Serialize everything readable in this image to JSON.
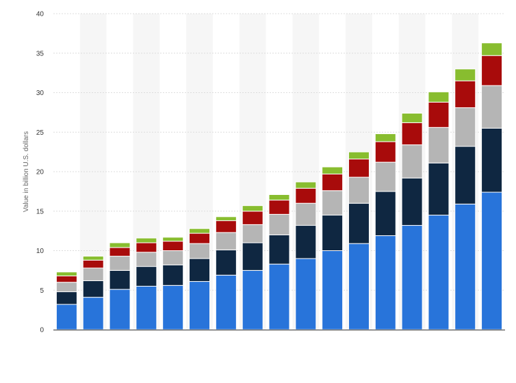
{
  "chart_data": {
    "type": "bar",
    "stacked": true,
    "title": "",
    "xlabel": "",
    "ylabel": "Value in billion U.S. dollars",
    "ylim": [
      0,
      40
    ],
    "yticks": [
      0,
      5,
      10,
      15,
      20,
      25,
      30,
      35,
      40
    ],
    "grid": true,
    "legend": "none",
    "categories": [
      "",
      "",
      "",
      "",
      "",
      "",
      "",
      "",
      "",
      "",
      "",
      "",
      "",
      "",
      "",
      "",
      ""
    ],
    "series": [
      {
        "color": "#2874da",
        "values": [
          3.2,
          4.1,
          5.1,
          5.5,
          5.6,
          6.1,
          6.9,
          7.5,
          8.3,
          9.0,
          10.0,
          10.9,
          11.9,
          13.2,
          14.5,
          15.9,
          17.4
        ]
      },
      {
        "color": "#0f2741",
        "values": [
          1.6,
          2.1,
          2.4,
          2.5,
          2.6,
          2.9,
          3.2,
          3.5,
          3.7,
          4.2,
          4.5,
          5.1,
          5.6,
          6.0,
          6.6,
          7.3,
          8.1
        ]
      },
      {
        "color": "#b5b5b5",
        "values": [
          1.2,
          1.6,
          1.8,
          1.8,
          1.8,
          1.9,
          2.2,
          2.3,
          2.6,
          2.8,
          3.1,
          3.3,
          3.7,
          4.2,
          4.5,
          4.9,
          5.4
        ]
      },
      {
        "color": "#a80b0b",
        "values": [
          0.8,
          1.0,
          1.1,
          1.2,
          1.2,
          1.3,
          1.5,
          1.7,
          1.8,
          1.9,
          2.1,
          2.3,
          2.6,
          2.8,
          3.2,
          3.4,
          3.8
        ]
      },
      {
        "color": "#88bd2f",
        "values": [
          0.5,
          0.5,
          0.6,
          0.6,
          0.5,
          0.6,
          0.5,
          0.7,
          0.7,
          0.8,
          0.9,
          0.9,
          1.0,
          1.2,
          1.3,
          1.5,
          1.6
        ]
      }
    ]
  }
}
